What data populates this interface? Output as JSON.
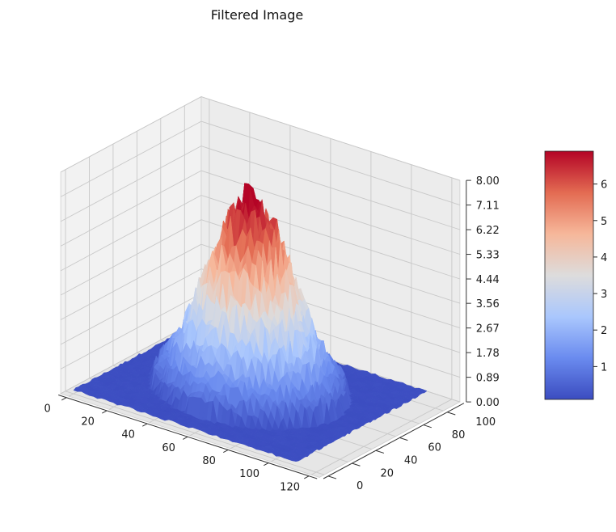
{
  "chart_data": {
    "type": "surface3d",
    "title": "Filtered Image",
    "colormap": "coolwarm",
    "colormap_stops": [
      "#3b4cc0",
      "#6a8bef",
      "#aac7fd",
      "#dddcdc",
      "#f6b79a",
      "#e36b52",
      "#b40426"
    ],
    "x_ticks": [
      "0",
      "20",
      "40",
      "60",
      "80",
      "100",
      "120"
    ],
    "y_ticks": [
      "0",
      "20",
      "40",
      "60",
      "80",
      "100"
    ],
    "z_ticks": [
      "0.00",
      "0.89",
      "1.78",
      "2.67",
      "3.56",
      "4.44",
      "5.33",
      "6.22",
      "7.11",
      "8.00"
    ],
    "xlim": [
      0,
      120
    ],
    "ylim": [
      0,
      110
    ],
    "zlim": [
      0,
      8
    ],
    "grid": true,
    "surface": {
      "grid_size": [
        110,
        110
      ],
      "peak_center": [
        55,
        55
      ],
      "peak_value": 6.9,
      "base_value": 0.1,
      "noise": "high-frequency random speckle"
    },
    "colorbar": {
      "min": 0.1,
      "max": 6.9,
      "ticks": [
        "1",
        "2",
        "3",
        "4",
        "5",
        "6"
      ],
      "placement": "right"
    }
  }
}
